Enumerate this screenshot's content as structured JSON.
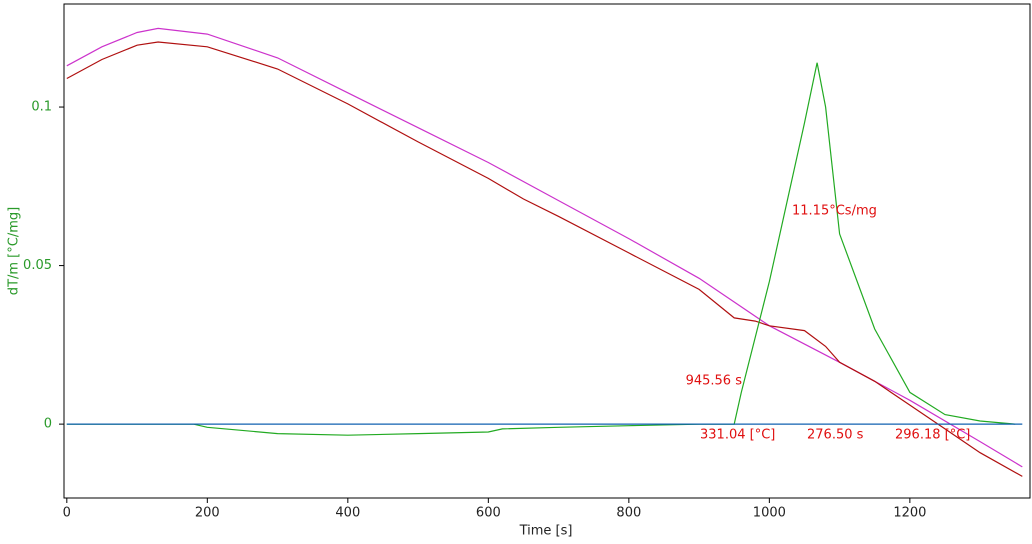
{
  "chart_data": {
    "type": "line",
    "x_label": "Time [s]",
    "y_label": "dT/m  [°C/mg]",
    "xlim": [
      -4,
      1371
    ],
    "ylim": [
      -0.0233,
      0.1325
    ],
    "xticks": [
      0,
      200,
      400,
      600,
      800,
      1000,
      1200
    ],
    "yticks": [
      0,
      0.05,
      0.1
    ],
    "series": [
      {
        "color": "#cc33cc",
        "x": [
          0,
          50,
          100,
          130,
          200,
          300,
          400,
          500,
          600,
          700,
          800,
          900,
          1000,
          1100,
          1200,
          1300,
          1360
        ],
        "values": [
          0.113,
          0.119,
          0.1235,
          0.1248,
          0.123,
          0.1155,
          0.1045,
          0.0935,
          0.0825,
          0.0705,
          0.0585,
          0.046,
          0.031,
          0.0195,
          0.0075,
          -0.0055,
          -0.0135
        ]
      },
      {
        "color": "#b01010",
        "x": [
          0,
          50,
          100,
          130,
          200,
          300,
          400,
          500,
          600,
          650,
          700,
          800,
          900,
          950,
          980,
          1000,
          1050,
          1080,
          1100,
          1150,
          1200,
          1250,
          1300,
          1360
        ],
        "values": [
          0.109,
          0.115,
          0.1195,
          0.1205,
          0.119,
          0.112,
          0.101,
          0.089,
          0.0775,
          0.071,
          0.0655,
          0.054,
          0.0425,
          0.0335,
          0.0325,
          0.031,
          0.0295,
          0.0245,
          0.0195,
          0.0135,
          0.006,
          -0.0015,
          -0.009,
          -0.0165
        ]
      },
      {
        "color": "#22aa22",
        "x": [
          0,
          180,
          200,
          300,
          400,
          500,
          600,
          620,
          700,
          800,
          900,
          950,
          960,
          1000,
          1050,
          1068,
          1080,
          1100,
          1150,
          1200,
          1250,
          1300,
          1350
        ],
        "values": [
          0,
          0,
          -0.001,
          -0.003,
          -0.0035,
          -0.003,
          -0.0025,
          -0.0015,
          -0.001,
          -0.0005,
          0,
          0,
          0.01,
          0.045,
          0.095,
          0.114,
          0.1,
          0.06,
          0.03,
          0.01,
          0.003,
          0.001,
          0
        ]
      },
      {
        "color": "#1060b0",
        "x": [
          0,
          1360
        ],
        "values": [
          0,
          0
        ]
      }
    ],
    "annotations": [
      "945.56 s",
      "11.15°Cs/mg",
      "331.04 [°C]",
      "276.50 s",
      "296.18 [°C]"
    ],
    "annotation_color": "#e01010",
    "frame": true
  }
}
